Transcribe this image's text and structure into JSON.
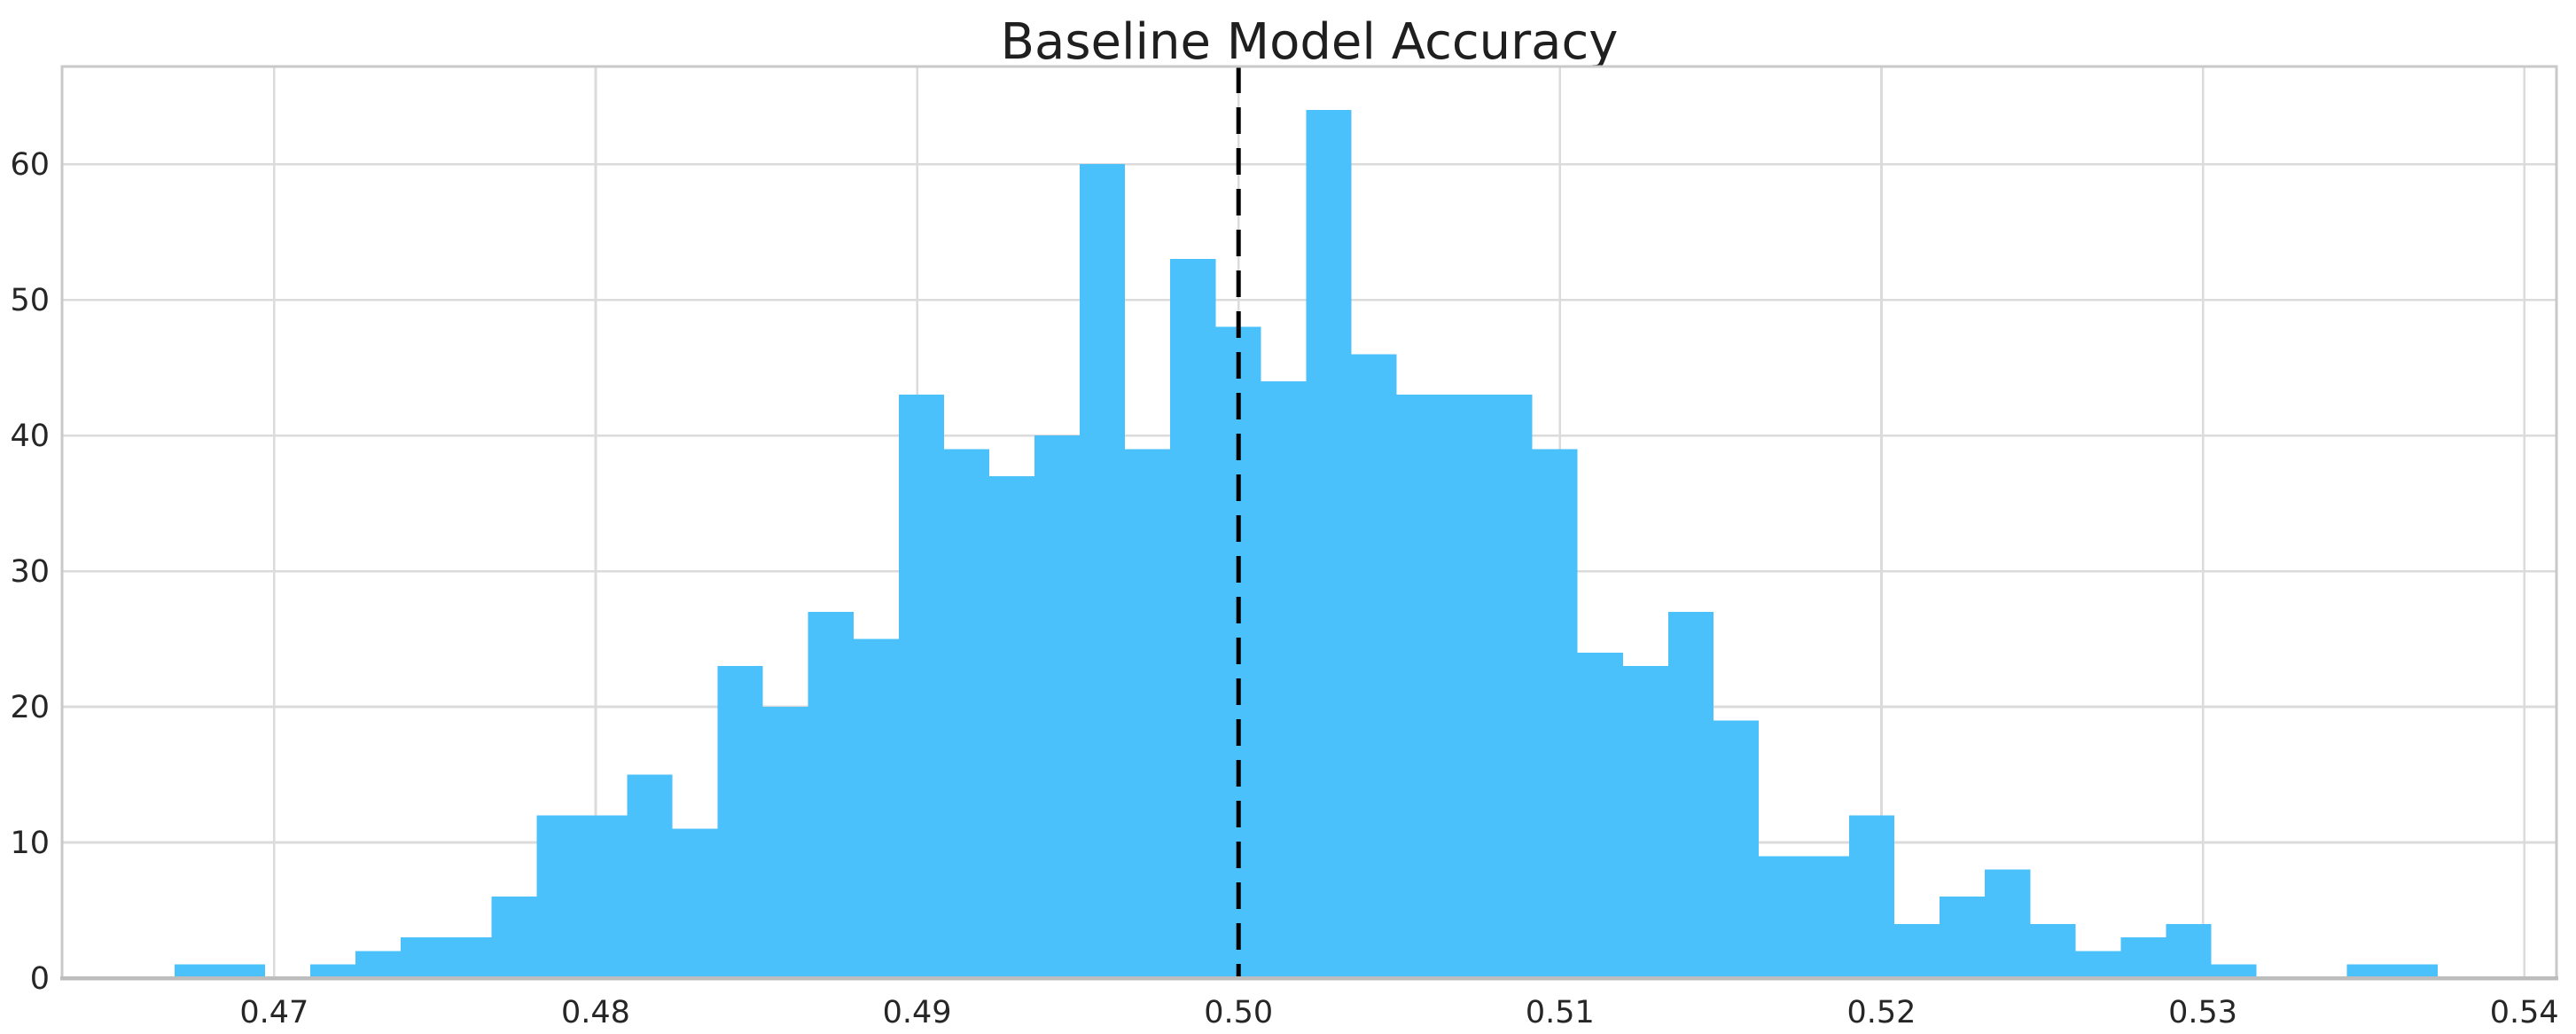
{
  "chart_data": {
    "type": "bar",
    "subtype": "histogram",
    "title": "Baseline Model Accuracy",
    "xlabel": "",
    "ylabel": "",
    "bin_start": 0.4669,
    "bin_width": 0.001408,
    "counts": [
      1,
      1,
      0,
      1,
      2,
      3,
      3,
      6,
      12,
      12,
      15,
      11,
      23,
      20,
      27,
      25,
      43,
      39,
      37,
      40,
      60,
      39,
      53,
      48,
      44,
      64,
      46,
      43,
      43,
      43,
      39,
      24,
      23,
      27,
      19,
      9,
      9,
      12,
      4,
      6,
      8,
      4,
      2,
      3,
      4,
      1,
      0,
      0,
      1,
      1
    ],
    "x_ticks": {
      "values": [
        0.47,
        0.48,
        0.49,
        0.5,
        0.51,
        0.52,
        0.53,
        0.54
      ],
      "labels": [
        "0.47",
        "0.48",
        "0.49",
        "0.50",
        "0.51",
        "0.52",
        "0.53",
        "0.54"
      ]
    },
    "y_ticks": {
      "values": [
        0,
        10,
        20,
        30,
        40,
        50,
        60
      ],
      "labels": [
        "0",
        "10",
        "20",
        "30",
        "40",
        "50",
        "60"
      ]
    },
    "xlim": [
      0.4634,
      0.541
    ],
    "ylim": [
      0,
      67.2
    ],
    "grid": true,
    "legend": false,
    "vline": {
      "x": 0.5,
      "style": "dashed",
      "color": "#000000"
    },
    "colors": {
      "bar": "#4AC1FA",
      "grid": "#DBDBDB",
      "spine": "#C9C9C9",
      "bottom_spine": "#BDBDBD",
      "text": "#262626",
      "title_text": "#1F1F1F",
      "background": "#FFFFFF"
    }
  }
}
